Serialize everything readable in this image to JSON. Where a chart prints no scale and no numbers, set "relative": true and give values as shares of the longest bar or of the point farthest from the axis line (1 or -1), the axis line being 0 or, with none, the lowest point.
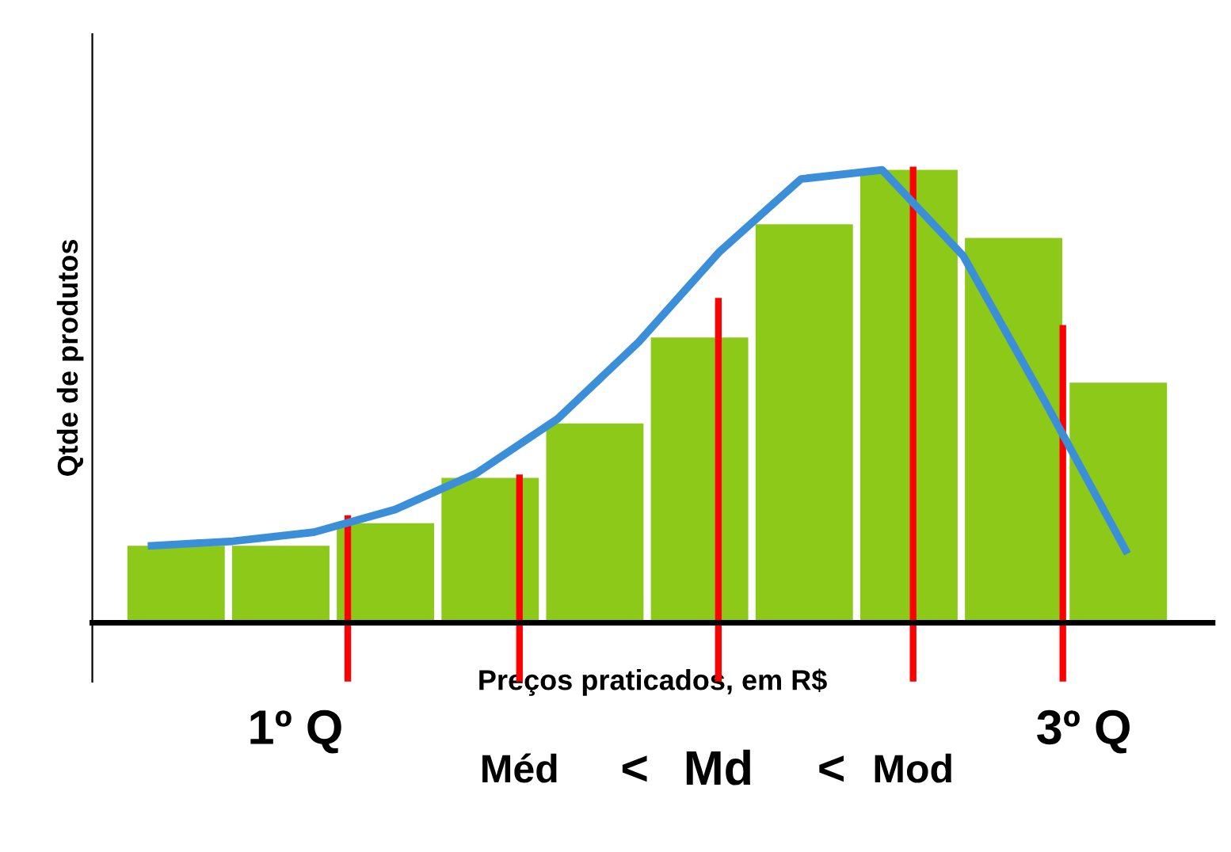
{
  "chart_data": [
    {
      "type": "bar",
      "relative": true,
      "xlabel": "Preços praticados, em R$",
      "ylabel": "Qtde de produtos",
      "categories": [
        null,
        null,
        null,
        null,
        null,
        null,
        null,
        null,
        null,
        null
      ],
      "series": [
        {
          "color": "#8cc919",
          "values": [
            0.17,
            0.17,
            0.22,
            0.32,
            0.44,
            0.63,
            0.88,
            1,
            0.85,
            0.53
          ]
        }
      ],
      "annotations": [
        "1º Q",
        "Méd",
        "Md",
        "Mod",
        "3º Q",
        "<",
        "<"
      ]
    },
    {
      "type": "line",
      "relative": true,
      "categories": [
        null,
        null,
        null,
        null,
        null,
        null,
        null,
        null,
        null,
        null,
        null,
        null,
        null
      ],
      "series": [
        {
          "color": "#3a8fd8",
          "values": [
            0.17,
            0.18,
            0.2,
            0.25,
            0.33,
            0.45,
            0.62,
            0.82,
            0.98,
            1,
            0.81,
            0.49,
            0.16
          ]
        }
      ]
    }
  ]
}
